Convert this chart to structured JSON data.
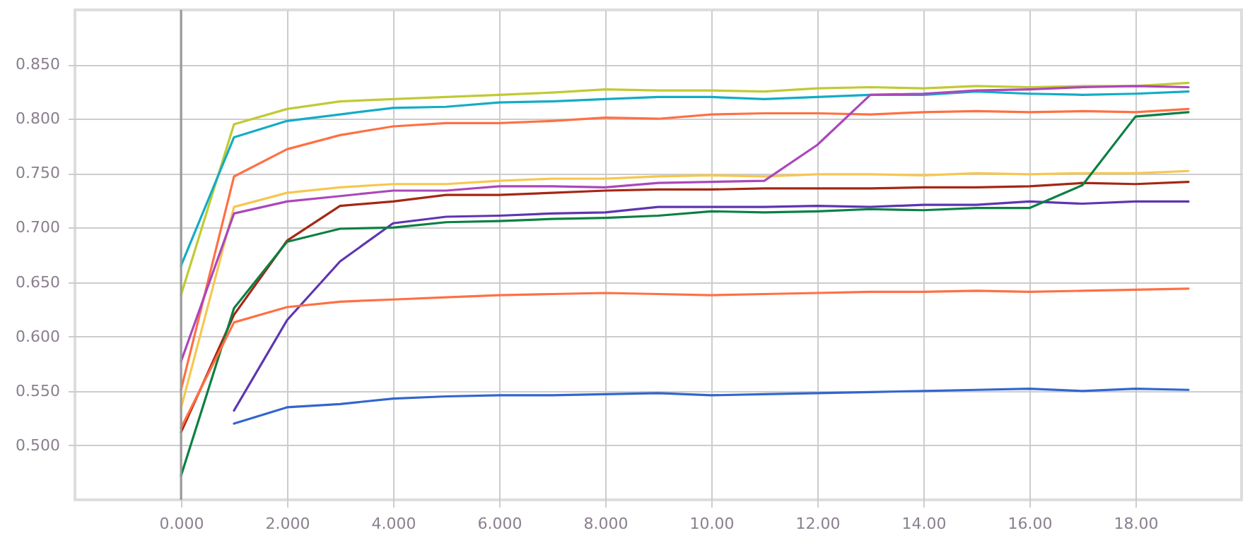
{
  "chart_data": {
    "type": "line",
    "x": [
      0,
      1,
      2,
      3,
      4,
      5,
      6,
      7,
      8,
      9,
      10,
      11,
      12,
      13,
      14,
      15,
      16,
      17,
      18,
      19
    ],
    "xlim": [
      -2,
      20
    ],
    "xticks": [
      {
        "value": 0,
        "label": "0.000"
      },
      {
        "value": 2,
        "label": "2.000"
      },
      {
        "value": 4,
        "label": "4.000"
      },
      {
        "value": 6,
        "label": "6.000"
      },
      {
        "value": 8,
        "label": "8.000"
      },
      {
        "value": 10,
        "label": "10.00"
      },
      {
        "value": 12,
        "label": "12.00"
      },
      {
        "value": 14,
        "label": "14.00"
      },
      {
        "value": 16,
        "label": "16.00"
      },
      {
        "value": 18,
        "label": "18.00"
      }
    ],
    "ylim": [
      0.45,
      0.9
    ],
    "yticks": [
      {
        "value": 0.5,
        "label": "0.500"
      },
      {
        "value": 0.55,
        "label": "0.550"
      },
      {
        "value": 0.6,
        "label": "0.600"
      },
      {
        "value": 0.65,
        "label": "0.650"
      },
      {
        "value": 0.7,
        "label": "0.700"
      },
      {
        "value": 0.75,
        "label": "0.750"
      },
      {
        "value": 0.8,
        "label": "0.800"
      },
      {
        "value": 0.85,
        "label": "0.850"
      }
    ],
    "grid": true,
    "line_style": "solid",
    "ref_lines": [
      {
        "axis": "x",
        "value": 0,
        "color": "#999999"
      }
    ],
    "series": [
      {
        "color": "#c0ca33",
        "values": [
          0.638,
          0.795,
          0.809,
          0.816,
          0.818,
          0.82,
          0.822,
          0.824,
          0.827,
          0.826,
          0.826,
          0.825,
          0.828,
          0.829,
          0.828,
          0.83,
          0.829,
          0.83,
          0.83,
          0.833
        ]
      },
      {
        "color": "#12acc6",
        "values": [
          0.665,
          0.783,
          0.798,
          0.804,
          0.81,
          0.811,
          0.815,
          0.816,
          0.818,
          0.82,
          0.82,
          0.818,
          0.82,
          0.822,
          0.822,
          0.825,
          0.823,
          0.822,
          0.823,
          0.825
        ]
      },
      {
        "color": "#ff7043",
        "values": [
          0.551,
          0.747,
          0.772,
          0.785,
          0.793,
          0.796,
          0.796,
          0.798,
          0.801,
          0.8,
          0.804,
          0.805,
          0.805,
          0.804,
          0.806,
          0.807,
          0.806,
          0.807,
          0.806,
          0.809
        ]
      },
      {
        "color": "#f6c74f",
        "values": [
          0.534,
          0.719,
          0.732,
          0.737,
          0.74,
          0.74,
          0.743,
          0.745,
          0.745,
          0.747,
          0.748,
          0.747,
          0.749,
          0.749,
          0.748,
          0.75,
          0.749,
          0.75,
          0.75,
          0.752
        ]
      },
      {
        "color": "#ab47bc",
        "values": [
          0.577,
          0.713,
          0.724,
          0.729,
          0.734,
          0.734,
          0.738,
          0.738,
          0.737,
          0.741,
          0.742,
          0.743,
          0.776,
          0.822,
          0.823,
          0.826,
          0.827,
          0.829,
          0.83,
          0.829
        ]
      },
      {
        "color": "#a52714",
        "values": [
          0.512,
          0.62,
          0.688,
          0.72,
          0.724,
          0.73,
          0.73,
          0.732,
          0.734,
          0.735,
          0.735,
          0.736,
          0.736,
          0.736,
          0.737,
          0.737,
          0.738,
          0.741,
          0.74,
          0.742
        ]
      },
      {
        "color": "#5e35b1",
        "values": [
          null,
          0.532,
          0.615,
          0.669,
          0.704,
          0.71,
          0.711,
          0.713,
          0.714,
          0.719,
          0.719,
          0.719,
          0.72,
          0.719,
          0.721,
          0.721,
          0.724,
          0.722,
          0.724,
          0.724
        ]
      },
      {
        "color": "#0b8043",
        "values": [
          0.472,
          0.626,
          0.687,
          0.699,
          0.7,
          0.705,
          0.706,
          0.708,
          0.709,
          0.711,
          0.715,
          0.714,
          0.715,
          0.717,
          0.716,
          0.718,
          0.718,
          0.739,
          0.802,
          0.806
        ]
      },
      {
        "color": "#ff7043",
        "values": [
          0.516,
          0.613,
          0.627,
          0.632,
          0.634,
          0.636,
          0.638,
          0.639,
          0.64,
          0.639,
          0.638,
          0.639,
          0.64,
          0.641,
          0.641,
          0.642,
          0.641,
          0.642,
          0.643,
          0.644
        ]
      },
      {
        "color": "#3366cc",
        "values": [
          null,
          0.52,
          0.535,
          0.538,
          0.543,
          0.545,
          0.546,
          0.546,
          0.547,
          0.548,
          0.546,
          0.547,
          0.548,
          0.549,
          0.55,
          0.551,
          0.552,
          0.55,
          0.552,
          0.551
        ]
      }
    ]
  }
}
